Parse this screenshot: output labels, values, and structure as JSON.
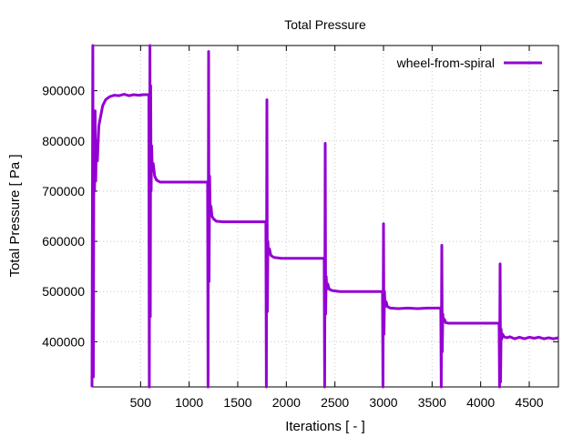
{
  "chart_data": {
    "type": "line",
    "title": "Total Pressure",
    "xlabel": "Iterations [ - ]",
    "ylabel": "Total Pressure [ Pa ]",
    "xlim": [
      0,
      4800
    ],
    "ylim": [
      310000,
      990000
    ],
    "x_ticks": [
      500,
      1000,
      1500,
      2000,
      2500,
      3000,
      3500,
      4000,
      4500
    ],
    "y_ticks": [
      400000,
      500000,
      600000,
      700000,
      800000,
      900000
    ],
    "grid": true,
    "legend_position": "top-right",
    "series": [
      {
        "name": "wheel-from-spiral",
        "color": "#9400d3",
        "points": [
          [
            0,
            310000
          ],
          [
            8,
            990000
          ],
          [
            14,
            330000
          ],
          [
            20,
            850000
          ],
          [
            26,
            700000
          ],
          [
            32,
            860000
          ],
          [
            38,
            720000
          ],
          [
            45,
            800000
          ],
          [
            55,
            760000
          ],
          [
            70,
            830000
          ],
          [
            90,
            850000
          ],
          [
            110,
            870000
          ],
          [
            140,
            882000
          ],
          [
            180,
            888000
          ],
          [
            230,
            891000
          ],
          [
            280,
            890000
          ],
          [
            330,
            893000
          ],
          [
            380,
            890000
          ],
          [
            430,
            892000
          ],
          [
            480,
            891000
          ],
          [
            530,
            892000
          ],
          [
            585,
            892000
          ],
          [
            590,
            310000
          ],
          [
            596,
            990000
          ],
          [
            600,
            450000
          ],
          [
            604,
            910000
          ],
          [
            608,
            700000
          ],
          [
            614,
            790000
          ],
          [
            620,
            745000
          ],
          [
            630,
            755000
          ],
          [
            645,
            730000
          ],
          [
            665,
            722000
          ],
          [
            700,
            718000
          ],
          [
            760,
            718000
          ],
          [
            850,
            718000
          ],
          [
            950,
            718000
          ],
          [
            1050,
            718000
          ],
          [
            1150,
            718000
          ],
          [
            1190,
            718000
          ],
          [
            1194,
            310000
          ],
          [
            1200,
            978000
          ],
          [
            1205,
            520000
          ],
          [
            1210,
            730000
          ],
          [
            1216,
            660000
          ],
          [
            1224,
            670000
          ],
          [
            1235,
            650000
          ],
          [
            1250,
            645000
          ],
          [
            1280,
            640000
          ],
          [
            1350,
            639000
          ],
          [
            1450,
            639000
          ],
          [
            1550,
            639000
          ],
          [
            1650,
            639000
          ],
          [
            1750,
            639000
          ],
          [
            1790,
            639000
          ],
          [
            1794,
            310000
          ],
          [
            1800,
            882000
          ],
          [
            1805,
            460000
          ],
          [
            1810,
            600000
          ],
          [
            1816,
            575000
          ],
          [
            1826,
            585000
          ],
          [
            1840,
            572000
          ],
          [
            1870,
            568000
          ],
          [
            1950,
            566000
          ],
          [
            2050,
            566000
          ],
          [
            2150,
            566000
          ],
          [
            2250,
            566000
          ],
          [
            2350,
            566000
          ],
          [
            2390,
            566000
          ],
          [
            2394,
            310000
          ],
          [
            2400,
            795000
          ],
          [
            2405,
            455000
          ],
          [
            2410,
            530000
          ],
          [
            2416,
            505000
          ],
          [
            2426,
            515000
          ],
          [
            2440,
            505000
          ],
          [
            2470,
            502000
          ],
          [
            2550,
            500000
          ],
          [
            2650,
            500000
          ],
          [
            2750,
            500000
          ],
          [
            2850,
            500000
          ],
          [
            2950,
            500000
          ],
          [
            2990,
            500000
          ],
          [
            2994,
            310000
          ],
          [
            3000,
            635000
          ],
          [
            3005,
            415000
          ],
          [
            3010,
            500000
          ],
          [
            3016,
            470000
          ],
          [
            3026,
            480000
          ],
          [
            3040,
            470000
          ],
          [
            3070,
            467000
          ],
          [
            3150,
            466000
          ],
          [
            3250,
            467000
          ],
          [
            3350,
            466000
          ],
          [
            3450,
            467000
          ],
          [
            3550,
            467000
          ],
          [
            3590,
            467000
          ],
          [
            3594,
            310000
          ],
          [
            3600,
            592000
          ],
          [
            3605,
            380000
          ],
          [
            3610,
            455000
          ],
          [
            3616,
            440000
          ],
          [
            3626,
            445000
          ],
          [
            3640,
            438000
          ],
          [
            3670,
            437000
          ],
          [
            3750,
            437000
          ],
          [
            3850,
            437000
          ],
          [
            3950,
            437000
          ],
          [
            4050,
            437000
          ],
          [
            4150,
            437000
          ],
          [
            4190,
            437000
          ],
          [
            4194,
            310000
          ],
          [
            4200,
            555000
          ],
          [
            4205,
            320000
          ],
          [
            4210,
            425000
          ],
          [
            4216,
            405000
          ],
          [
            4226,
            415000
          ],
          [
            4240,
            410000
          ],
          [
            4270,
            408000
          ],
          [
            4300,
            410000
          ],
          [
            4350,
            406000
          ],
          [
            4400,
            409000
          ],
          [
            4450,
            406000
          ],
          [
            4500,
            409000
          ],
          [
            4550,
            407000
          ],
          [
            4600,
            409000
          ],
          [
            4650,
            406000
          ],
          [
            4700,
            408000
          ],
          [
            4750,
            406000
          ],
          [
            4800,
            408000
          ]
        ]
      }
    ]
  }
}
